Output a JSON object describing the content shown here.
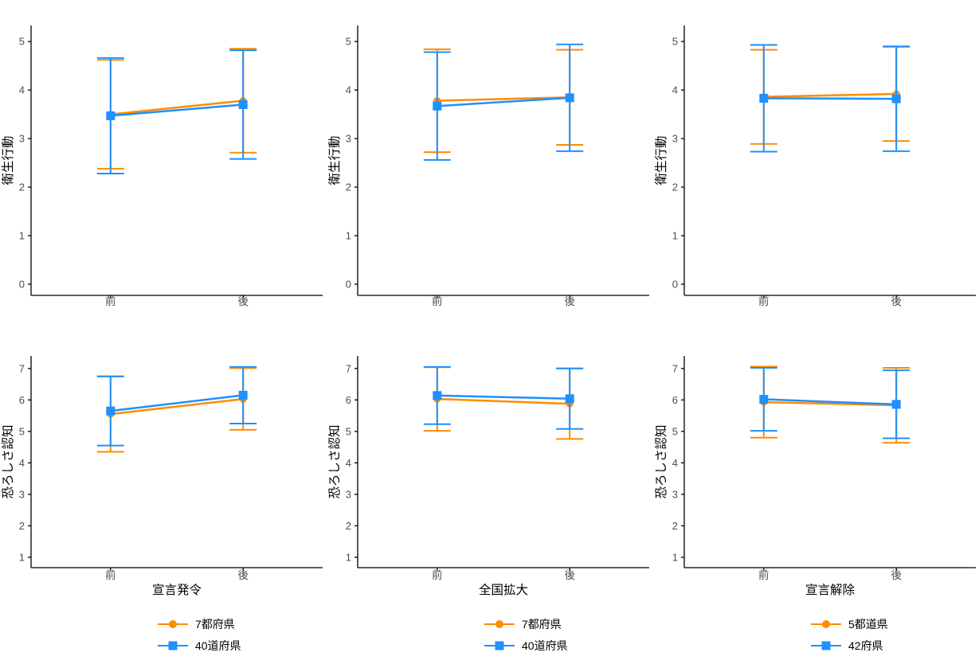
{
  "figure": {
    "background": "#FFFFFF",
    "axis_line_color": "#000000",
    "tick_label_color": "#4D4D4D",
    "orange": "#FF8C00",
    "blue": "#1E90FF",
    "legend_position": "bottom"
  },
  "chart_data": [
    {
      "id": "hygiene-declaration",
      "type": "line",
      "title": "",
      "xlabel": "",
      "ylabel": "衛生行動",
      "categories": [
        "前",
        "後"
      ],
      "yticks": [
        0,
        1,
        2,
        3,
        4,
        5
      ],
      "ylim": [
        -0.23,
        5.33
      ],
      "grid": false,
      "series": [
        {
          "name": "7都府県",
          "color": "#FF8C00",
          "marker": "circle",
          "values": [
            3.5,
            3.78
          ],
          "lower": [
            2.38,
            2.71
          ],
          "upper": [
            4.62,
            4.85
          ]
        },
        {
          "name": "40道府県",
          "color": "#1E90FF",
          "marker": "square",
          "values": [
            3.47,
            3.7
          ],
          "lower": [
            2.28,
            2.58
          ],
          "upper": [
            4.66,
            4.82
          ]
        }
      ]
    },
    {
      "id": "fear-declaration",
      "type": "line",
      "title": "",
      "xlabel": "宣言発令",
      "ylabel": "恐ろしさ認知",
      "categories": [
        "前",
        "後"
      ],
      "yticks": [
        1,
        2,
        3,
        4,
        5,
        6,
        7
      ],
      "ylim": [
        0.67,
        7.4
      ],
      "grid": false,
      "series": [
        {
          "name": "7都府県",
          "color": "#FF8C00",
          "marker": "circle",
          "values": [
            5.55,
            6.03
          ],
          "lower": [
            4.35,
            5.05
          ],
          "upper": [
            6.75,
            7.01
          ]
        },
        {
          "name": "40道府県",
          "color": "#1E90FF",
          "marker": "square",
          "values": [
            5.65,
            6.15
          ],
          "lower": [
            4.55,
            5.25
          ],
          "upper": [
            6.75,
            7.05
          ]
        }
      ]
    },
    {
      "id": "hygiene-expansion",
      "type": "line",
      "title": "",
      "xlabel": "",
      "ylabel": "衛生行動",
      "categories": [
        "前",
        "後"
      ],
      "yticks": [
        0,
        1,
        2,
        3,
        4,
        5
      ],
      "ylim": [
        -0.23,
        5.33
      ],
      "grid": false,
      "series": [
        {
          "name": "7都府県",
          "color": "#FF8C00",
          "marker": "circle",
          "values": [
            3.78,
            3.85
          ],
          "lower": [
            2.72,
            2.87
          ],
          "upper": [
            4.84,
            4.83
          ]
        },
        {
          "name": "40道府県",
          "color": "#1E90FF",
          "marker": "square",
          "values": [
            3.67,
            3.84
          ],
          "lower": [
            2.56,
            2.74
          ],
          "upper": [
            4.78,
            4.94
          ]
        }
      ]
    },
    {
      "id": "fear-expansion",
      "type": "line",
      "title": "",
      "xlabel": "全国拡大",
      "ylabel": "恐ろしさ認知",
      "categories": [
        "前",
        "後"
      ],
      "yticks": [
        1,
        2,
        3,
        4,
        5,
        6,
        7
      ],
      "ylim": [
        0.67,
        7.4
      ],
      "grid": false,
      "series": [
        {
          "name": "7都府県",
          "color": "#FF8C00",
          "marker": "circle",
          "values": [
            6.03,
            5.88
          ],
          "lower": [
            5.02,
            4.76
          ],
          "upper": [
            7.04,
            7.0
          ]
        },
        {
          "name": "40道府県",
          "color": "#1E90FF",
          "marker": "square",
          "values": [
            6.14,
            6.04
          ],
          "lower": [
            5.23,
            5.08
          ],
          "upper": [
            7.05,
            7.0
          ]
        }
      ]
    },
    {
      "id": "hygiene-lifting",
      "type": "line",
      "title": "",
      "xlabel": "",
      "ylabel": "衛生行動",
      "categories": [
        "前",
        "後"
      ],
      "yticks": [
        0,
        1,
        2,
        3,
        4,
        5
      ],
      "ylim": [
        -0.23,
        5.33
      ],
      "grid": false,
      "series": [
        {
          "name": "5都道県",
          "color": "#FF8C00",
          "marker": "circle",
          "values": [
            3.86,
            3.92
          ],
          "lower": [
            2.89,
            2.95
          ],
          "upper": [
            4.83,
            4.89
          ]
        },
        {
          "name": "42府県",
          "color": "#1E90FF",
          "marker": "square",
          "values": [
            3.83,
            3.82
          ],
          "lower": [
            2.73,
            2.74
          ],
          "upper": [
            4.93,
            4.9
          ]
        }
      ]
    },
    {
      "id": "fear-lifting",
      "type": "line",
      "title": "",
      "xlabel": "宣言解除",
      "ylabel": "恐ろしさ認知",
      "categories": [
        "前",
        "後"
      ],
      "yticks": [
        1,
        2,
        3,
        4,
        5,
        6,
        7
      ],
      "ylim": [
        0.67,
        7.4
      ],
      "grid": false,
      "series": [
        {
          "name": "5都道県",
          "color": "#FF8C00",
          "marker": "circle",
          "values": [
            5.93,
            5.83
          ],
          "lower": [
            4.8,
            4.64
          ],
          "upper": [
            7.06,
            7.02
          ]
        },
        {
          "name": "42府県",
          "color": "#1E90FF",
          "marker": "square",
          "values": [
            6.02,
            5.86
          ],
          "lower": [
            5.02,
            4.78
          ],
          "upper": [
            7.02,
            6.94
          ]
        }
      ]
    }
  ]
}
